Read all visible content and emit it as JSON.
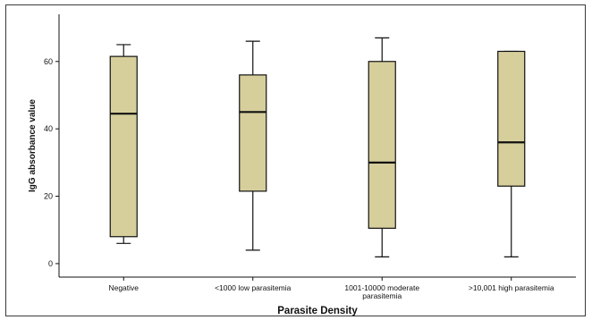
{
  "chart_data": {
    "type": "boxplot",
    "xlabel": "Parasite Density",
    "ylabel": "IgG absorbance value",
    "ylim": [
      -4,
      74
    ],
    "yticks": [
      0,
      20,
      40,
      60
    ],
    "grid": false,
    "colors": {
      "box_fill": "#d6cf9c",
      "stroke": "#111111",
      "background": "#ffffff"
    },
    "categories": [
      {
        "label": [
          "Negative"
        ],
        "min": 6,
        "q1": 8,
        "median": 44.5,
        "q3": 61.5,
        "max": 65
      },
      {
        "label": [
          "<1000 low parasitemia"
        ],
        "min": 4,
        "q1": 21.5,
        "median": 45,
        "q3": 56,
        "max": 66
      },
      {
        "label": [
          "1001-10000 moderate",
          "parasitemia"
        ],
        "min": 2,
        "q1": 10.5,
        "median": 30,
        "q3": 60,
        "max": 67
      },
      {
        "label": [
          ">10,001 high parasitemia"
        ],
        "min": 2,
        "q1": 23,
        "median": 36,
        "q3": 63,
        "max": 63
      }
    ]
  }
}
